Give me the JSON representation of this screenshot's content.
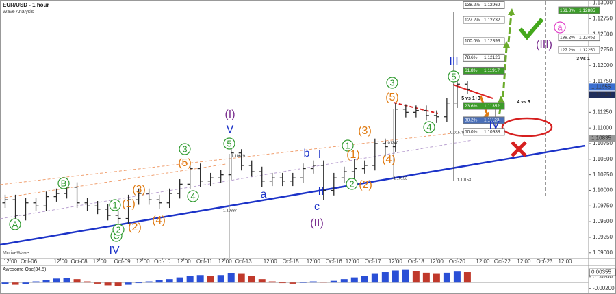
{
  "chart_data": [
    {
      "type": "ohlc",
      "title": "EUR/USD - 1 hour",
      "subtitle": "Wave Analysis",
      "watermark": "MotiveWave",
      "color": "#2b2b2b",
      "open": [
        1.098,
        1.0985,
        1.096,
        1.098,
        1.0975,
        1.099,
        1.0995,
        1.1005,
        1.098,
        1.0975,
        1.097,
        1.096,
        1.0955,
        1.0985,
        1.0995,
        1.0985,
        1.098,
        1.0995,
        1.101,
        1.1035,
        1.1015,
        1.102,
        1.1025,
        1.106,
        1.104,
        1.103,
        1.1015,
        1.102,
        1.1015,
        1.102,
        1.1035,
        1.104,
        1.1,
        1.102,
        1.103,
        1.1035,
        1.104,
        1.1075,
        1.107,
        1.113,
        1.1125,
        1.1128,
        1.112,
        1.1118,
        1.114,
        1.117
      ],
      "high": [
        1.0993,
        1.0993,
        1.0988,
        1.0988,
        1.0998,
        1.1003,
        1.1013,
        1.1013,
        1.0988,
        1.0983,
        1.0978,
        1.0968,
        1.0993,
        1.1003,
        1.1003,
        1.0993,
        1.1003,
        1.1018,
        1.1043,
        1.1043,
        1.1028,
        1.1033,
        1.1068,
        1.1066,
        1.1048,
        1.1038,
        1.1028,
        1.1028,
        1.1028,
        1.1043,
        1.1048,
        1.1048,
        1.1028,
        1.1038,
        1.105,
        1.1048,
        1.1083,
        1.1083,
        1.114,
        1.1138,
        1.1136,
        1.1136,
        1.1128,
        1.1148,
        1.1178,
        1.1175
      ],
      "low": [
        1.0972,
        1.095,
        1.0952,
        1.0967,
        1.0967,
        1.0982,
        1.0987,
        1.0972,
        1.0967,
        1.0962,
        1.0952,
        1.0945,
        1.0947,
        1.0977,
        1.0977,
        1.097,
        1.0972,
        1.0987,
        1.1002,
        1.1005,
        1.1007,
        1.1012,
        1.1017,
        1.1032,
        1.1022,
        1.1005,
        1.1007,
        1.1007,
        1.1007,
        1.1012,
        1.1027,
        1.0985,
        1.0992,
        1.1012,
        1.1008,
        1.1027,
        1.1032,
        1.1055,
        1.1062,
        1.1117,
        1.1117,
        1.1112,
        1.1108,
        1.111,
        1.1132,
        1.1154
      ],
      "close": [
        1.0985,
        1.096,
        1.098,
        1.0975,
        1.099,
        1.0995,
        1.1005,
        1.098,
        1.0975,
        1.097,
        1.096,
        1.0955,
        1.0985,
        1.0995,
        1.0985,
        1.098,
        1.0995,
        1.101,
        1.1035,
        1.1015,
        1.102,
        1.1025,
        1.106,
        1.104,
        1.103,
        1.1015,
        1.102,
        1.1015,
        1.102,
        1.1035,
        1.104,
        1.1,
        1.102,
        1.103,
        1.1035,
        1.104,
        1.1075,
        1.107,
        1.113,
        1.1125,
        1.1128,
        1.112,
        1.1118,
        1.114,
        1.117,
        1.1162
      ],
      "xlim": [
        0,
        57.3
      ],
      "xticks": [
        {
          "value": 1,
          "label": "12:00"
        },
        {
          "value": 2.8,
          "label": "Oct-06"
        },
        {
          "value": 5.9,
          "label": "12:00"
        },
        {
          "value": 7.7,
          "label": "Oct-08"
        },
        {
          "value": 9.7,
          "label": "12:00"
        },
        {
          "value": 11.9,
          "label": "Oct-09"
        },
        {
          "value": 13.9,
          "label": "12:00"
        },
        {
          "value": 15.8,
          "label": "Oct-10"
        },
        {
          "value": 17.9,
          "label": "12:00"
        },
        {
          "value": 19.9,
          "label": "Oct-11"
        },
        {
          "value": 21.9,
          "label": "12:00"
        },
        {
          "value": 23.7,
          "label": "Oct-13"
        },
        {
          "value": 26.3,
          "label": "12:00"
        },
        {
          "value": 28.3,
          "label": "Oct-15"
        },
        {
          "value": 30.5,
          "label": "12:00"
        },
        {
          "value": 32.5,
          "label": "Oct-16"
        },
        {
          "value": 34.3,
          "label": "12:00"
        },
        {
          "value": 36.3,
          "label": "Oct-17"
        },
        {
          "value": 38.5,
          "label": "12:00"
        },
        {
          "value": 40.5,
          "label": "Oct-18"
        },
        {
          "value": 42.5,
          "label": "12:00"
        },
        {
          "value": 44.5,
          "label": "Oct-20"
        },
        {
          "value": 47,
          "label": "12:00"
        },
        {
          "value": 48.9,
          "label": "Oct-22"
        },
        {
          "value": 51,
          "label": "12:00"
        },
        {
          "value": 53,
          "label": "Oct-23"
        },
        {
          "value": 55,
          "label": "12:00"
        }
      ],
      "ylim": [
        1.0891,
        1.1305
      ],
      "yticks": [
        {
          "value": 1.13,
          "label": "1.13000"
        },
        {
          "value": 1.1275,
          "label": "1.12750"
        },
        {
          "value": 1.125,
          "label": "1.12500"
        },
        {
          "value": 1.1225,
          "label": "1.12250"
        },
        {
          "value": 1.12,
          "label": "1.12000"
        },
        {
          "value": 1.1175,
          "label": "1.11750"
        },
        {
          "value": 1.115,
          "label": "1.11500"
        },
        {
          "value": 1.1125,
          "label": "1.11250"
        },
        {
          "value": 1.11,
          "label": "1.11000"
        },
        {
          "value": 1.1075,
          "label": "1.10750"
        },
        {
          "value": 1.105,
          "label": "1.10500"
        },
        {
          "value": 1.1025,
          "label": "1.10250"
        },
        {
          "value": 1.1,
          "label": "1.10000"
        },
        {
          "value": 1.0975,
          "label": "1.09750"
        },
        {
          "value": 1.095,
          "label": "1.09500"
        },
        {
          "value": 1.0925,
          "label": "1.09250"
        },
        {
          "value": 1.09,
          "label": "1.09000"
        }
      ],
      "axis_markers": [
        {
          "value": 1.11655,
          "label": "1.11655"
        },
        {
          "value": 1.11533,
          "label": "1.11533"
        },
        {
          "value": 1.10835,
          "label": "1.10835"
        }
      ],
      "fib_left": [
        {
          "ratio": "138.2%",
          "price": {
            "value": 1.12969,
            "label": "1.12969"
          }
        },
        {
          "ratio": "127.2%",
          "price": {
            "value": 1.12732,
            "label": "1.12732"
          }
        },
        {
          "ratio": "100.0%",
          "price": {
            "value": 1.12393,
            "label": "1.12393"
          }
        },
        {
          "ratio": "78.6%",
          "price": {
            "value": 1.12126,
            "label": "1.12126"
          }
        },
        {
          "ratio": "61.8%",
          "price": {
            "value": 1.11917,
            "label": "1.11917"
          }
        },
        {
          "ratio": "23.6%",
          "price": {
            "value": 1.11352,
            "label": "1.11352"
          }
        },
        {
          "ratio": "38.2%",
          "price": {
            "value": 1.11123,
            "label": "1.11123"
          }
        },
        {
          "ratio": "50.0%",
          "price": {
            "value": 1.10938,
            "label": "1.10938"
          }
        }
      ],
      "fib_right": [
        {
          "ratio": "161.8%",
          "price": {
            "value": 1.12885,
            "label": "1.12885"
          }
        },
        {
          "ratio": "138.2%",
          "price": {
            "value": 1.12452,
            "label": "1.12452"
          }
        },
        {
          "ratio": "127.2%",
          "price": {
            "value": 1.1225,
            "label": "1.12250"
          }
        }
      ],
      "annotations": [
        "A",
        "B",
        "C",
        "1",
        "2",
        "(1)",
        "(2)",
        "(3)",
        "(4)",
        "IV",
        "3",
        "(5)",
        "4",
        "5",
        "V",
        "(I)",
        "a",
        "b",
        "c",
        "I",
        "II",
        "(II)",
        "1",
        "(1)",
        "2",
        "(2)",
        "(3)",
        "(4)",
        "3",
        "(5)",
        "4",
        "5",
        "III",
        "IV",
        "(III)",
        "a",
        "5 vs 1+3",
        "4 vs 3",
        "3 vs 1",
        "1.10629",
        "1.10837",
        "0.01579",
        "1.01240",
        "1.10153",
        "1.10153"
      ]
    },
    {
      "type": "bar",
      "title": "Awesome Osc(34,5)",
      "up_color": "#2a4fd6",
      "down_color": "#c0392b",
      "values": [
        -0.0005,
        -0.0008,
        -0.0006,
        0.0004,
        0.001,
        0.0014,
        0.0016,
        0.0012,
        0.0004,
        -0.0004,
        -0.001,
        -0.0012,
        -0.0008,
        -0.0002,
        0.0004,
        0.0008,
        0.0012,
        0.0018,
        0.0024,
        0.0026,
        0.0024,
        0.0026,
        0.0032,
        0.003,
        0.0022,
        0.0012,
        0.0004,
        -0.0002,
        -0.0004,
        0.0,
        0.0004,
        0.0002,
        0.0006,
        0.0012,
        0.0018,
        0.0022,
        0.003,
        0.0036,
        0.0042,
        0.0044,
        0.004,
        0.0034,
        0.003,
        0.0034,
        0.0038,
        0.0036
      ],
      "ylim": [
        -0.0035,
        0.0055
      ],
      "yticks": [
        {
          "value": 0.002,
          "label": "0.00200"
        },
        {
          "value": -0.002,
          "label": "-0.00200"
        }
      ],
      "axis_markers": [
        {
          "value": 0.00355,
          "label": "0.00355"
        }
      ]
    }
  ]
}
